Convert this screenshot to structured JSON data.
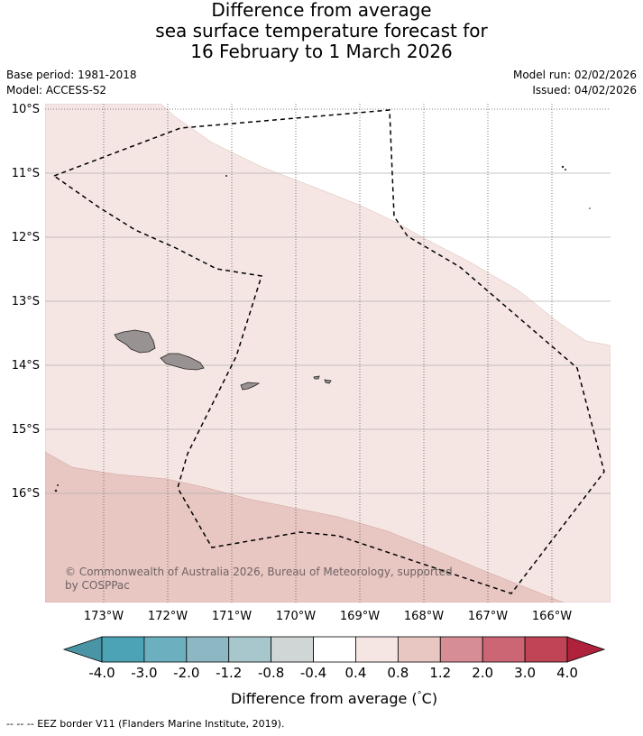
{
  "title": {
    "line1": "Difference from average",
    "line2": "sea surface temperature forecast for",
    "line3": "16 February to 1 March 2026"
  },
  "meta": {
    "base_period": "Base period: 1981-2018",
    "model": "Model: ACCESS-S2",
    "model_run": "Model run: 02/02/2026",
    "issued": "Issued: 04/02/2026"
  },
  "map": {
    "lat_labels": [
      "10°S",
      "11°S",
      "12°S",
      "13°S",
      "14°S",
      "15°S",
      "16°S"
    ],
    "lon_labels": [
      "173°W",
      "172°W",
      "171°W",
      "170°W",
      "169°W",
      "168°W",
      "167°W",
      "166°W"
    ],
    "copyright": "© Commonwealth of Australia 2026, Bureau of Meteorology, supported",
    "copyright_line2": "by COSPPac"
  },
  "colorbar": {
    "title": "Difference from average (",
    "title_deg": "°",
    "title_end": "C)",
    "ticks": [
      "-4.0",
      "-3.0",
      "-2.0",
      "-1.2",
      "-0.8",
      "-0.4",
      "0.4",
      "0.8",
      "1.2",
      "2.0",
      "3.0",
      "4.0"
    ],
    "colors": [
      "#4a95a5",
      "#4ba3b5",
      "#6cb0c0",
      "#8cb8c4",
      "#a8c7cc",
      "#d0d6d6",
      "#ffffff",
      "#f5e6e4",
      "#e8c6c2",
      "#d78d95",
      "#cd6674",
      "#c04455",
      "#b0223c"
    ]
  },
  "legend": {
    "eez": "--  --  -- EEZ border V11 (Flanders Marine Institute, 2019)."
  }
}
